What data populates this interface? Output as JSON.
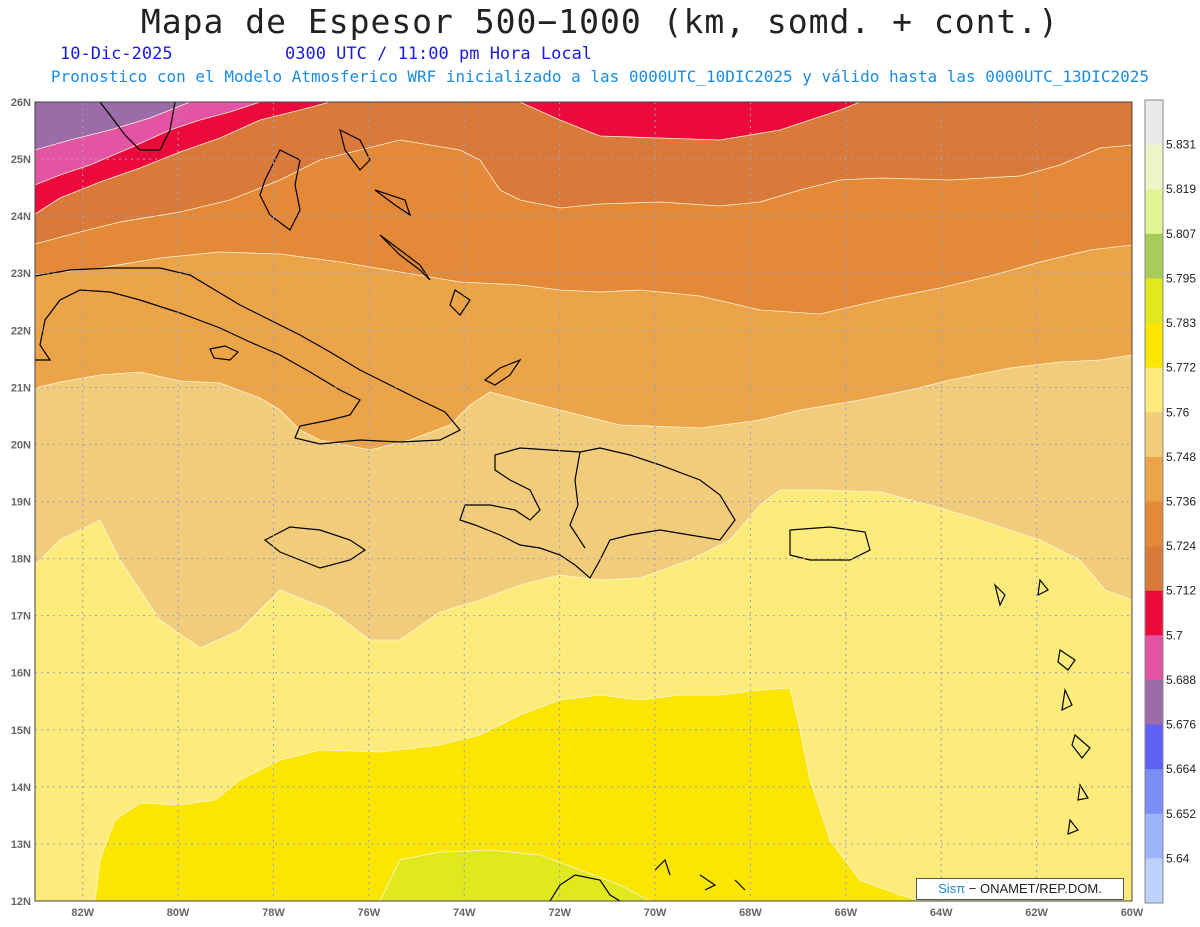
{
  "header": {
    "title": "Mapa de Espesor 500−1000 (km, somd. + cont.)",
    "date": "10-Dic-2025",
    "time": "0300 UTC / 11:00 pm Hora Local",
    "subtitle": "Pronostico con el Modelo Atmosferico WRF inicializado a las 0000UTC_10DIC2025 y válido hasta las  0000UTC_13DIC2025"
  },
  "map": {
    "lon_range": [
      -83,
      -60
    ],
    "lat_range": [
      12,
      26
    ],
    "x_ticks": [
      "82W",
      "80W",
      "78W",
      "76W",
      "74W",
      "72W",
      "70W",
      "68W",
      "66W",
      "64W",
      "62W",
      "60W"
    ],
    "y_ticks": [
      "26N",
      "25N",
      "24N",
      "23N",
      "22N",
      "21N",
      "20N",
      "19N",
      "18N",
      "17N",
      "16N",
      "15N",
      "14N",
      "13N",
      "12N"
    ]
  },
  "colorbar": {
    "labels": [
      "5.831",
      "5.819",
      "5.807",
      "5.795",
      "5.783",
      "5.772",
      "5.76",
      "5.748",
      "5.736",
      "5.724",
      "5.712",
      "5.7",
      "5.688",
      "5.676",
      "5.664",
      "5.652",
      "5.64"
    ],
    "colors": [
      "#eaeaea",
      "#f0f5c8",
      "#e1f596",
      "#a8cc5a",
      "#e0e81e",
      "#fae600",
      "#fdec7c",
      "#f1cc7a",
      "#eba448",
      "#e38938",
      "#d97a3a",
      "#ec0a3c",
      "#e454a4",
      "#9c6ca8",
      "#6060f4",
      "#7a8ef8",
      "#9cb4fc",
      "#bed0fc"
    ]
  },
  "credit": {
    "sis": "Sisπ",
    "text": "− ONAMET/REP.DOM."
  }
}
